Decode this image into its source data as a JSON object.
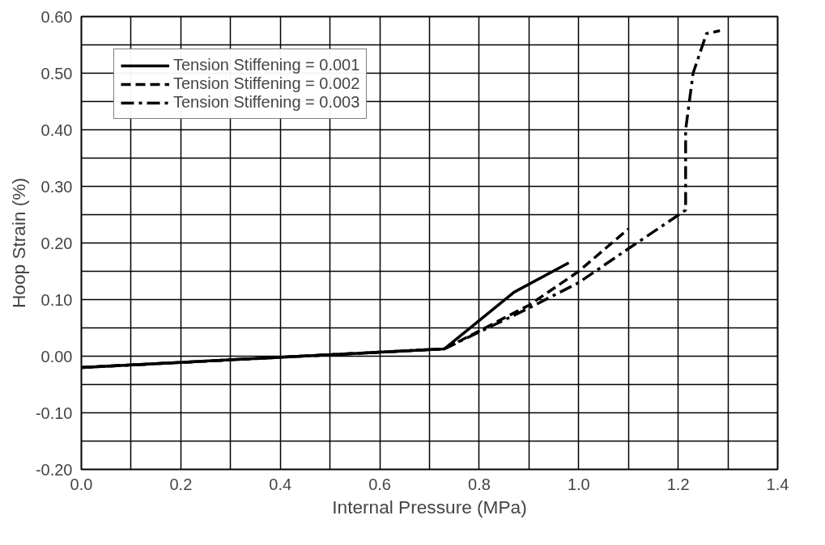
{
  "chart_data": {
    "type": "line",
    "xlabel": "Internal Pressure (MPa)",
    "ylabel": "Hoop Strain (%)",
    "xlim": [
      0,
      1.4
    ],
    "ylim": [
      -0.2,
      0.6
    ],
    "xticks": [
      {
        "value": 0,
        "label": "0.0"
      },
      {
        "value": 0.1,
        "label": null
      },
      0.2,
      {
        "value": 0.3,
        "label": null
      },
      0.4,
      {
        "value": 0.5,
        "label": null
      },
      0.6,
      {
        "value": 0.7,
        "label": null
      },
      0.8,
      {
        "value": 0.9,
        "label": null
      },
      {
        "value": 1,
        "label": "1.0"
      },
      {
        "value": 1.1,
        "label": null
      },
      1.2,
      {
        "value": 1.3,
        "label": null
      },
      1.4
    ],
    "yticks": [
      {
        "value": -0.2,
        "label": "-0.20"
      },
      {
        "value": -0.15,
        "label": null
      },
      {
        "value": -0.1,
        "label": "-0.10"
      },
      {
        "value": -0.05,
        "label": null
      },
      {
        "value": 0,
        "label": "0.00"
      },
      {
        "value": 0.05,
        "label": null
      },
      {
        "value": 0.1,
        "label": "0.10"
      },
      {
        "value": 0.15,
        "label": null
      },
      {
        "value": 0.2,
        "label": "0.20"
      },
      {
        "value": 0.25,
        "label": null
      },
      {
        "value": 0.3,
        "label": "0.30"
      },
      {
        "value": 0.35,
        "label": null
      },
      {
        "value": 0.4,
        "label": "0.40"
      },
      {
        "value": 0.45,
        "label": null
      },
      {
        "value": 0.5,
        "label": "0.50"
      },
      {
        "value": 0.55,
        "label": null
      },
      {
        "value": 0.6,
        "label": "0.60"
      }
    ],
    "grid": true,
    "legend": "top left",
    "marker": "none",
    "series": [
      {
        "name": "Tension Stiffening = 0.001",
        "color": "#000000",
        "line_style": "solid",
        "x": [
          0,
          0.73,
          0.87,
          0.98
        ],
        "values": [
          -0.02,
          0.013,
          0.113,
          0.165
        ]
      },
      {
        "name": "Tension Stiffening = 0.002",
        "color": "#000000",
        "line_style": "dashed",
        "x": [
          0,
          0.73,
          0.9,
          1.0,
          1.1
        ],
        "values": [
          -0.02,
          0.013,
          0.09,
          0.15,
          0.225
        ]
      },
      {
        "name": "Tension Stiffening = 0.003",
        "color": "#000000",
        "line_style": "dashdot",
        "x": [
          0,
          0.73,
          0.9,
          1.0,
          1.1,
          1.215,
          1.215,
          1.23,
          1.257,
          1.284
        ],
        "values": [
          -0.02,
          0.013,
          0.085,
          0.13,
          0.19,
          0.258,
          0.4,
          0.5,
          0.57,
          0.575
        ]
      }
    ]
  }
}
